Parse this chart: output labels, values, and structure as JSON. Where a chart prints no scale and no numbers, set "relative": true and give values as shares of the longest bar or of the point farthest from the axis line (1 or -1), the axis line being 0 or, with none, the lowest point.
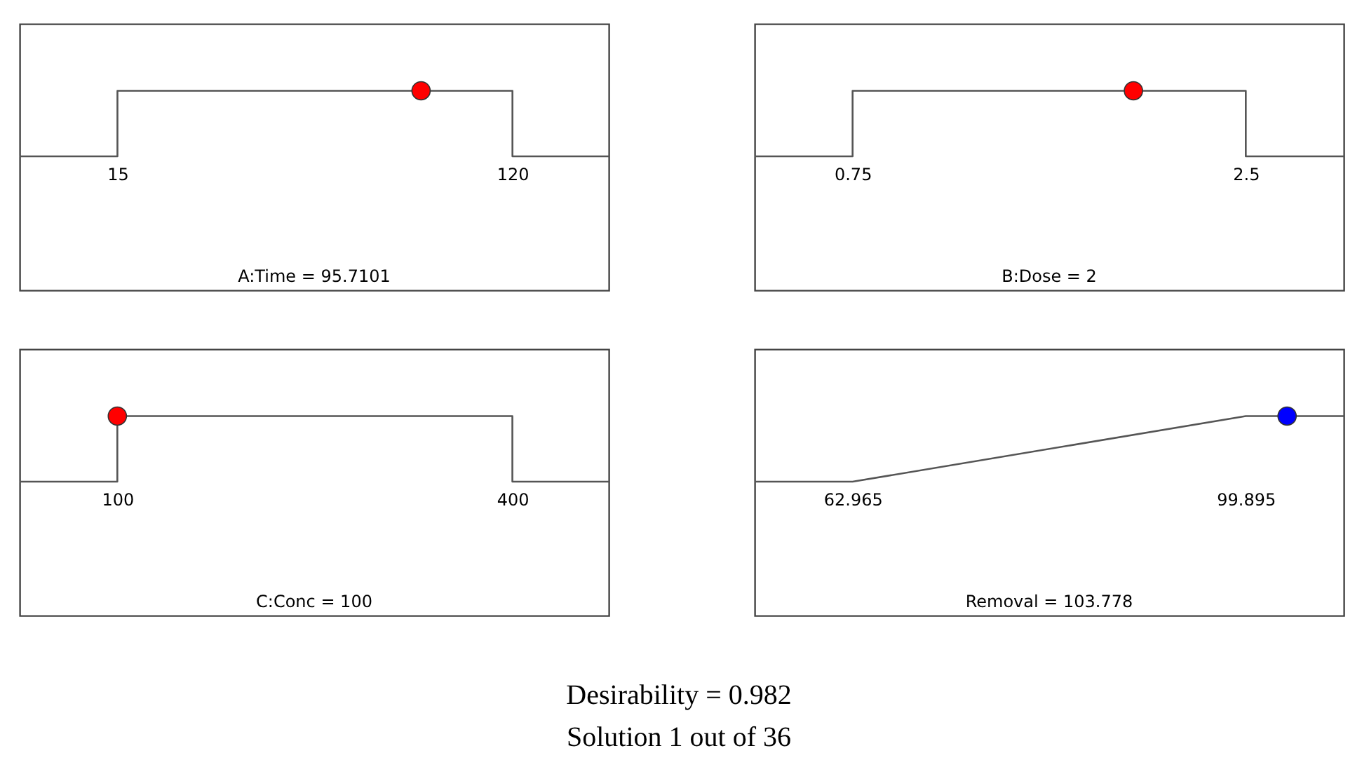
{
  "chart_data": [
    {
      "type": "line",
      "xlabel": "A:Time = 95.7101",
      "relative": true,
      "xlim": [
        -11,
        145.6
      ],
      "xticks": [
        15,
        120
      ],
      "tick_labels": "x",
      "grid": false,
      "series": [
        {
          "type": "line",
          "color": "#555555",
          "marker": "none",
          "x": [
            -11,
            15,
            15,
            120,
            120,
            145.6
          ],
          "values": [
            0,
            0,
            1,
            1,
            0,
            0
          ]
        },
        {
          "type": "scatter",
          "color": "#ff0000",
          "marker": "circle",
          "x": [
            95.7101
          ],
          "values": [
            1
          ]
        }
      ]
    },
    {
      "type": "line",
      "xlabel": "B:Dose = 2",
      "relative": true,
      "xlim": [
        0.314,
        2.936
      ],
      "xticks": [
        0.75,
        2.5
      ],
      "tick_labels": "x",
      "grid": false,
      "series": [
        {
          "type": "line",
          "color": "#555555",
          "marker": "none",
          "x": [
            0.314,
            0.75,
            0.75,
            2.5,
            2.5,
            2.936
          ],
          "values": [
            0,
            0,
            1,
            1,
            0,
            0
          ]
        },
        {
          "type": "scatter",
          "color": "#ff0000",
          "marker": "circle",
          "x": [
            2
          ],
          "values": [
            1
          ]
        }
      ]
    },
    {
      "type": "line",
      "xlabel": "C:Conc = 100",
      "relative": true,
      "xlim": [
        25.8,
        473.2
      ],
      "xticks": [
        100,
        400
      ],
      "tick_labels": "x",
      "grid": false,
      "series": [
        {
          "type": "line",
          "color": "#555555",
          "marker": "none",
          "x": [
            25.8,
            100,
            100,
            400,
            400,
            473.2
          ],
          "values": [
            0,
            0,
            1,
            1,
            0,
            0
          ]
        },
        {
          "type": "scatter",
          "color": "#ff0000",
          "marker": "circle",
          "x": [
            100
          ],
          "values": [
            1
          ]
        }
      ]
    },
    {
      "type": "line",
      "xlabel": "Removal = 103.778",
      "relative": true,
      "xlim": [
        53.76,
        109.1
      ],
      "xticks": [
        62.965,
        99.895
      ],
      "tick_labels": "x",
      "grid": false,
      "annotations": [
        "Desirability = 0.982",
        "Solution 1 out of 36"
      ],
      "series": [
        {
          "type": "line",
          "color": "#555555",
          "marker": "none",
          "x": [
            53.76,
            62.965,
            99.895,
            109.1
          ],
          "values": [
            0,
            0,
            1,
            1
          ]
        },
        {
          "type": "scatter",
          "color": "#0000ff",
          "marker": "circle",
          "x": [
            103.778
          ],
          "values": [
            1
          ]
        }
      ]
    }
  ]
}
